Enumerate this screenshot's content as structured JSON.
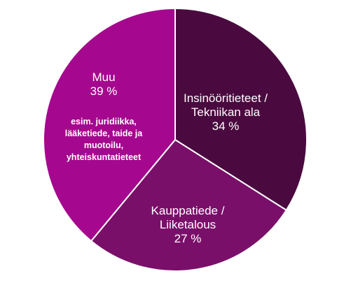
{
  "chart_data": {
    "type": "pie",
    "title": "",
    "slices": [
      {
        "label_lines": [
          "Insinööritieteet /",
          "Tekniikan ala"
        ],
        "value_text": "34 %",
        "value": 34,
        "color": "#4b0a3f",
        "note_lines": []
      },
      {
        "label_lines": [
          "Kauppatiede /",
          "Liiketalous"
        ],
        "value_text": "27 %",
        "value": 27,
        "color": "#7a0f6a",
        "note_lines": []
      },
      {
        "label_lines": [
          "Muu"
        ],
        "value_text": "39 %",
        "value": 39,
        "color": "#a5088e",
        "note_lines": [
          "esim. juridiikka,",
          "lääketiede, taide ja",
          "muotoilu,",
          "yhteiskuntatieteet"
        ]
      }
    ],
    "start_angle_deg": 0,
    "direction": "clockwise",
    "stroke_color": "#ffffff"
  }
}
